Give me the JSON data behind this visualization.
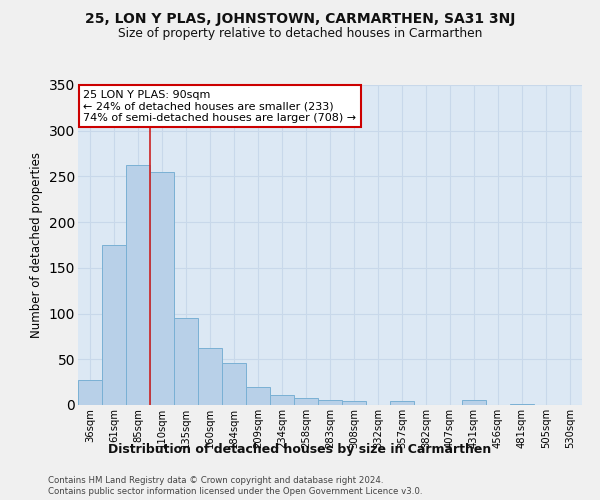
{
  "title1": "25, LON Y PLAS, JOHNSTOWN, CARMARTHEN, SA31 3NJ",
  "title2": "Size of property relative to detached houses in Carmarthen",
  "xlabel": "Distribution of detached houses by size in Carmarthen",
  "ylabel": "Number of detached properties",
  "categories": [
    "36sqm",
    "61sqm",
    "85sqm",
    "110sqm",
    "135sqm",
    "160sqm",
    "184sqm",
    "209sqm",
    "234sqm",
    "258sqm",
    "283sqm",
    "308sqm",
    "332sqm",
    "357sqm",
    "382sqm",
    "407sqm",
    "431sqm",
    "456sqm",
    "481sqm",
    "505sqm",
    "530sqm"
  ],
  "values": [
    27,
    175,
    263,
    255,
    95,
    62,
    46,
    20,
    11,
    8,
    5,
    4,
    0,
    4,
    0,
    0,
    5,
    0,
    1,
    0,
    0
  ],
  "bar_color": "#b8d0e8",
  "bar_edge_color": "#7ab0d4",
  "vline_x": 2.5,
  "annotation_line1": "25 LON Y PLAS: 90sqm",
  "annotation_line2": "← 24% of detached houses are smaller (233)",
  "annotation_line3": "74% of semi-detached houses are larger (708) →",
  "annotation_box_color": "#ffffff",
  "annotation_box_edge_color": "#cc0000",
  "grid_color": "#c8d8ea",
  "bg_color": "#dce8f4",
  "vline_color": "#cc2222",
  "footer1": "Contains HM Land Registry data © Crown copyright and database right 2024.",
  "footer2": "Contains public sector information licensed under the Open Government Licence v3.0.",
  "ylim": [
    0,
    350
  ],
  "fig_bg": "#f0f0f0"
}
